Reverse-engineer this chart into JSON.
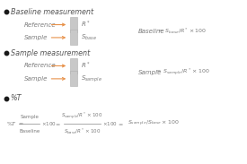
{
  "bg_color": "#ffffff",
  "section1_title": "Baseline measurement",
  "section2_title": "Sample measurement",
  "section3_title": "%T",
  "ref_label": "Reference",
  "sample_label": "Sample",
  "arrow_color": "#e8924a",
  "box_color": "#c8c8c8",
  "box_edge_color": "#b0b0b0",
  "dot_color": "#1a1a1a",
  "text_color": "#7a7a7a",
  "title_color": "#555555",
  "line_color": "#888888",
  "fs_title": 5.8,
  "fs_label": 5.0,
  "fs_eq": 4.5,
  "fs_small": 4.0
}
